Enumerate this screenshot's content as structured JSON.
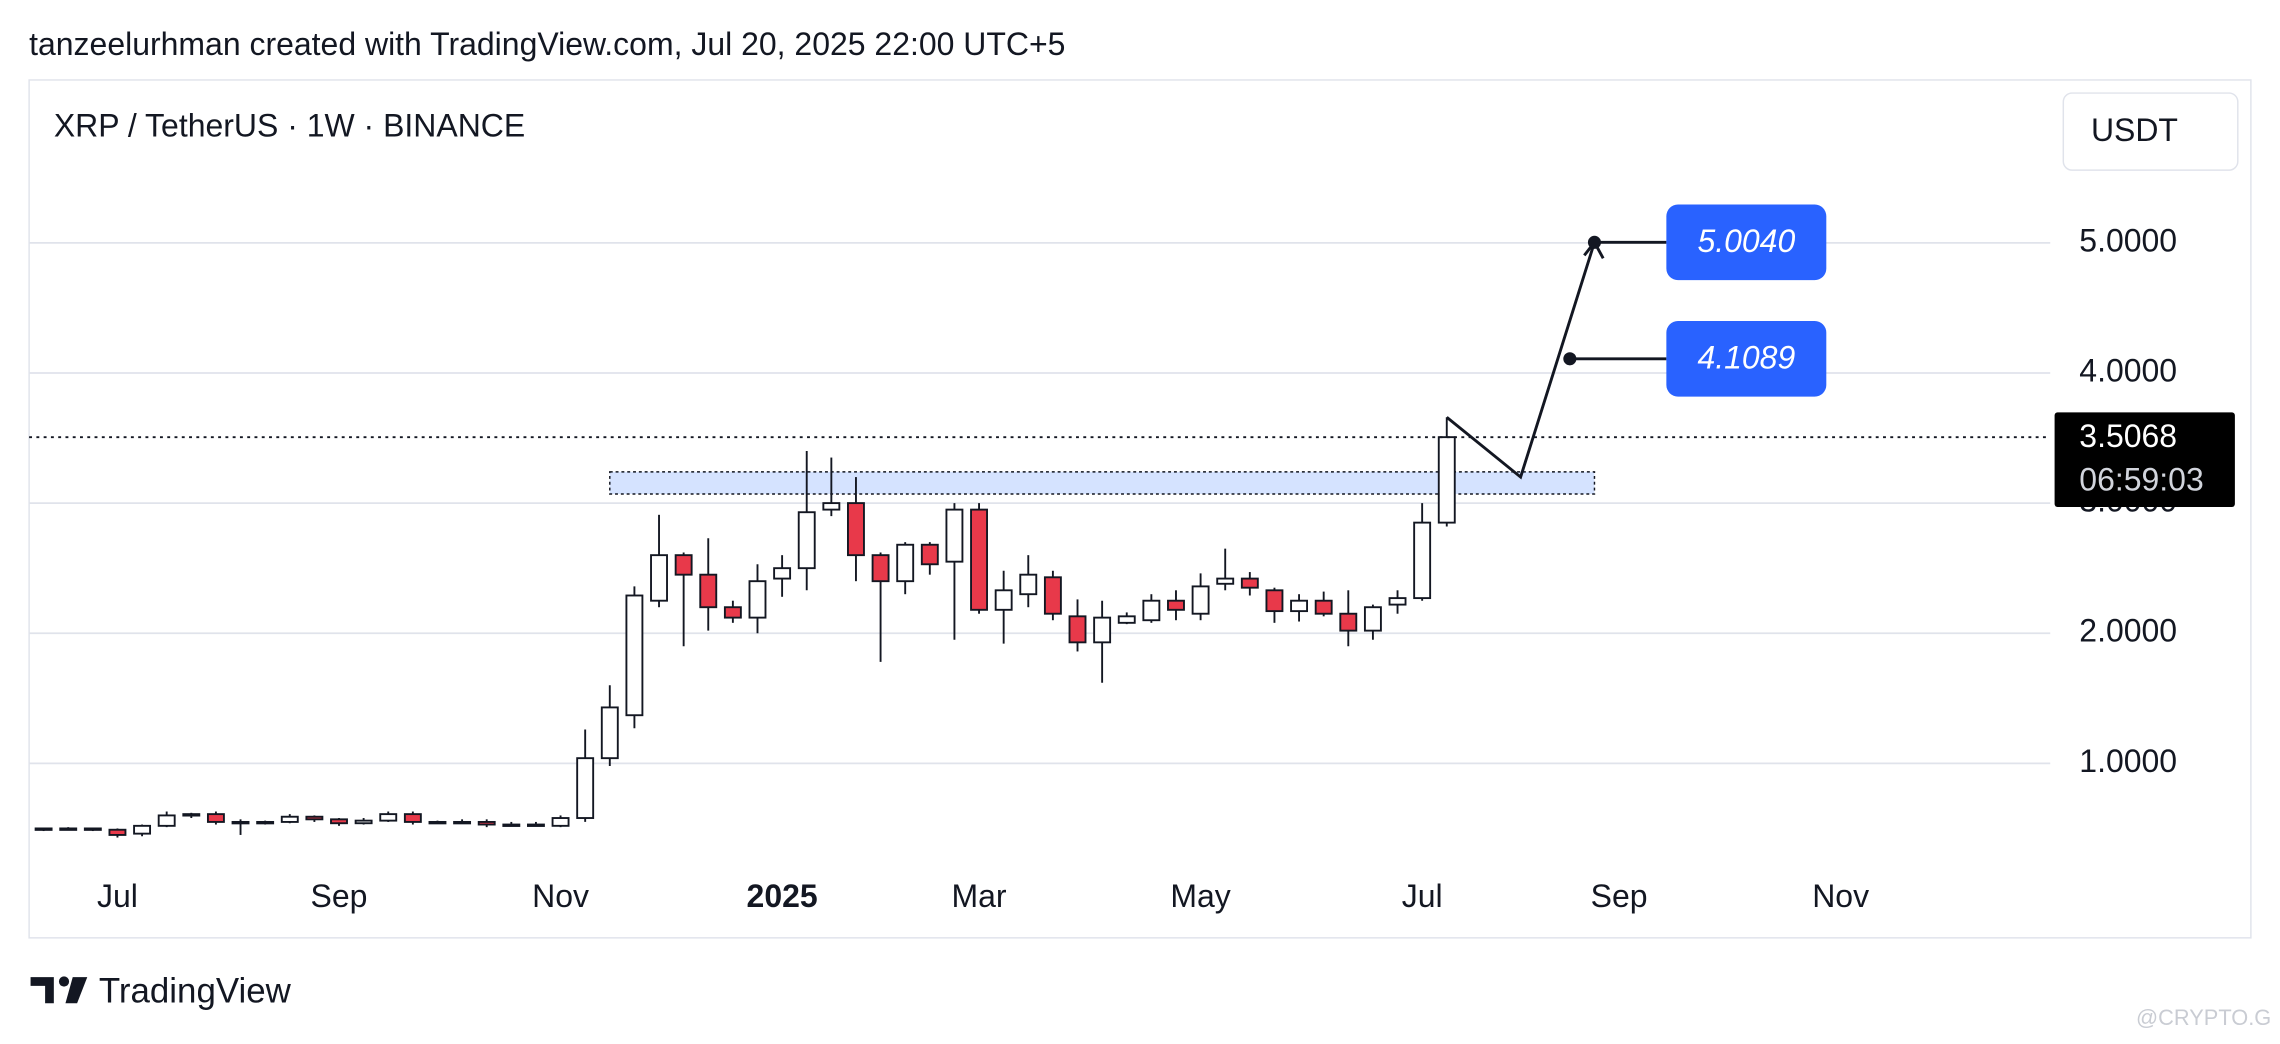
{
  "header": "tanzeelurhman created with TradingView.com, Jul 20, 2025 22:00 UTC+5",
  "footer": "TradingView",
  "watermark": "@CRYPTO.G",
  "chart_data": {
    "type": "candlestick",
    "title": "XRP / TetherUS · 1W · BINANCE",
    "currency": "USDT",
    "countdown": "06:59:03",
    "categories": [
      null,
      null,
      null,
      "Jul",
      null,
      null,
      null,
      null,
      null,
      null,
      null,
      null,
      "Sep",
      null,
      null,
      null,
      null,
      null,
      null,
      null,
      null,
      "Nov",
      null,
      null,
      null,
      null,
      null,
      null,
      null,
      null,
      "2025",
      null,
      null,
      null,
      null,
      null,
      null,
      null,
      "Mar",
      null,
      null,
      null,
      null,
      null,
      null,
      null,
      null,
      "May",
      null,
      null,
      null,
      null,
      null,
      null,
      null,
      null,
      "Jul",
      null,
      null,
      null,
      null,
      null,
      null,
      null,
      "Sep",
      null,
      null,
      null,
      null,
      null,
      null,
      null,
      null,
      "Nov",
      null,
      null,
      null,
      null,
      null,
      null
    ],
    "open": [
      0.49,
      0.5,
      0.5,
      0.49,
      0.46,
      0.52,
      0.6,
      0.61,
      0.55,
      0.54,
      0.55,
      0.59,
      0.57,
      0.54,
      0.56,
      0.61,
      0.55,
      0.55,
      0.55,
      0.53,
      0.53,
      0.52,
      0.58,
      1.04,
      1.37,
      2.25,
      2.6,
      2.45,
      2.2,
      2.12,
      2.42,
      2.5,
      2.95,
      3.0,
      2.6,
      2.4,
      2.68,
      2.55,
      2.95,
      2.18,
      2.3,
      2.43,
      2.13,
      1.93,
      2.08,
      2.1,
      2.25,
      2.15,
      2.38,
      2.42,
      2.33,
      2.17,
      2.25,
      2.15,
      2.02,
      2.22,
      2.27,
      2.85,
      null,
      null,
      null,
      null,
      null,
      null,
      null,
      null,
      null,
      null,
      null,
      null,
      null,
      null,
      null,
      null,
      null,
      null,
      null,
      null,
      null,
      null
    ],
    "high": [
      0.5,
      0.51,
      0.5,
      0.5,
      0.53,
      0.63,
      0.62,
      0.63,
      0.57,
      0.56,
      0.61,
      0.6,
      0.58,
      0.58,
      0.63,
      0.63,
      0.56,
      0.57,
      0.57,
      0.55,
      0.55,
      0.6,
      1.26,
      1.6,
      2.36,
      2.91,
      2.62,
      2.73,
      2.25,
      2.53,
      2.6,
      3.4,
      3.35,
      3.2,
      2.62,
      2.7,
      2.7,
      3.0,
      3.0,
      2.48,
      2.6,
      2.48,
      2.26,
      2.25,
      2.16,
      2.3,
      2.33,
      2.46,
      2.65,
      2.47,
      2.35,
      2.3,
      2.32,
      2.33,
      2.22,
      2.33,
      3.0,
      3.66,
      null,
      null,
      null,
      null,
      null,
      null,
      null,
      null,
      null,
      null,
      null,
      null,
      null,
      null,
      null,
      null,
      null,
      null,
      null,
      null,
      null,
      null
    ],
    "low": [
      0.48,
      0.49,
      0.48,
      0.43,
      0.44,
      0.51,
      0.58,
      0.53,
      0.45,
      0.53,
      0.54,
      0.55,
      0.52,
      0.53,
      0.55,
      0.53,
      0.54,
      0.54,
      0.51,
      0.52,
      0.52,
      0.51,
      0.55,
      0.98,
      1.27,
      2.2,
      1.9,
      2.02,
      2.08,
      2.0,
      2.28,
      2.33,
      2.9,
      2.4,
      1.78,
      2.3,
      2.45,
      1.95,
      2.15,
      1.92,
      2.2,
      2.1,
      1.86,
      1.62,
      2.07,
      2.08,
      2.1,
      2.1,
      2.33,
      2.29,
      2.08,
      2.09,
      2.13,
      1.9,
      1.95,
      2.15,
      2.25,
      2.82,
      null,
      null,
      null,
      null,
      null,
      null,
      null,
      null,
      null,
      null,
      null,
      null,
      null,
      null,
      null,
      null,
      null,
      null,
      null,
      null,
      null,
      null
    ],
    "close": [
      0.5,
      0.5,
      0.49,
      0.45,
      0.52,
      0.6,
      0.61,
      0.55,
      0.54,
      0.55,
      0.59,
      0.57,
      0.54,
      0.56,
      0.61,
      0.55,
      0.55,
      0.55,
      0.53,
      0.53,
      0.52,
      0.58,
      1.04,
      1.43,
      2.29,
      2.6,
      2.45,
      2.2,
      2.12,
      2.4,
      2.5,
      2.93,
      3.0,
      2.6,
      2.4,
      2.68,
      2.53,
      2.95,
      2.18,
      2.33,
      2.45,
      2.15,
      1.93,
      2.12,
      2.13,
      2.25,
      2.18,
      2.36,
      2.42,
      2.35,
      2.17,
      2.25,
      2.15,
      2.02,
      2.2,
      2.27,
      2.85,
      3.5068,
      null,
      null,
      null,
      null,
      null,
      null,
      null,
      null,
      null,
      null,
      null,
      null,
      null,
      null,
      null,
      null,
      null,
      null,
      null,
      null,
      null,
      null
    ],
    "up_color": "#ffffff",
    "down_color": "#e8394a",
    "ylim": [
      0.162,
      6.218
    ],
    "yticks": [
      {
        "value": 1,
        "label": "1.0000"
      },
      {
        "value": 2,
        "label": "2.0000"
      },
      {
        "value": 3,
        "label": "3.0000"
      },
      {
        "value": 4,
        "label": "4.0000"
      },
      {
        "value": 5,
        "label": "5.0000"
      }
    ],
    "grid": true,
    "zone": {
      "low": 3.07,
      "high": 3.24,
      "start": 23,
      "end": 63,
      "color": "#d5e3ff"
    },
    "projection": {
      "x": [
        57,
        60,
        63
      ],
      "y": [
        3.66,
        3.2,
        5.004
      ]
    },
    "targets": {
      "x": [
        63,
        62
      ],
      "values": [
        5.004,
        4.1089
      ],
      "value_labels": [
        "5.0040",
        "4.1089"
      ],
      "color": "#2962ff"
    }
  }
}
